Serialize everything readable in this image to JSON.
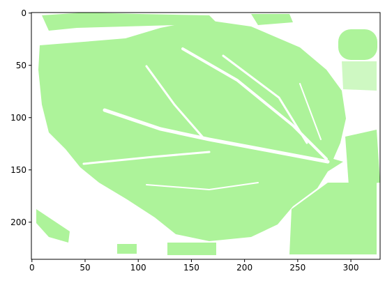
{
  "chart_data": {
    "type": "image",
    "color": "#adf39a",
    "xlim": [
      -0.5,
      327.5
    ],
    "ylim": [
      235.5,
      -0.5
    ],
    "xticks": [
      0,
      50,
      100,
      150,
      200,
      250,
      300
    ],
    "yticks": [
      0,
      50,
      100,
      150,
      200
    ]
  }
}
